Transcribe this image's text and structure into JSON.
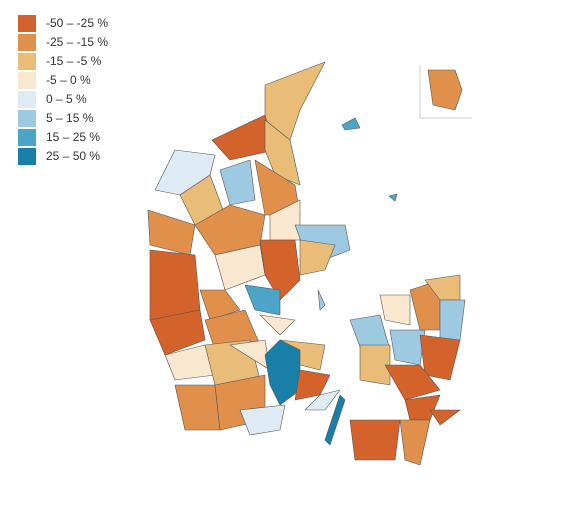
{
  "legend": [
    {
      "label": "-50 – -25 %",
      "color": "#d4622b"
    },
    {
      "label": "-25 – -15 %",
      "color": "#e0904a"
    },
    {
      "label": "-15 – -5 %",
      "color": "#e9bd78"
    },
    {
      "label": "-5 – 0 %",
      "color": "#fae7d0"
    },
    {
      "label": "0 – 5 %",
      "color": "#deebf5"
    },
    {
      "label": "5 – 15 %",
      "color": "#9ecae1"
    },
    {
      "label": "15 – 25 %",
      "color": "#4ba5c8"
    },
    {
      "label": "25 – 50 %",
      "color": "#1a7fa8"
    }
  ]
}
